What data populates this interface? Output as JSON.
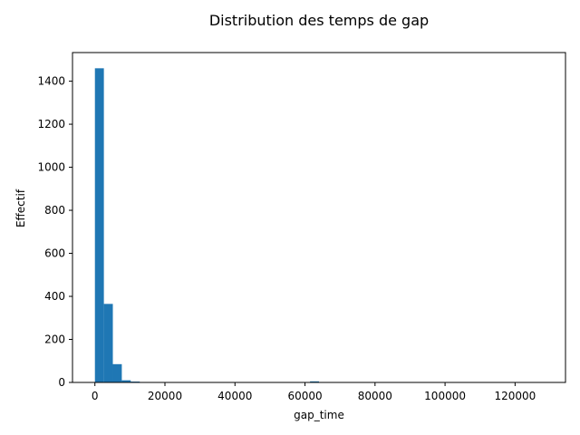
{
  "chart_data": {
    "type": "bar",
    "title": "Distribution des temps de gap",
    "xlabel": "gap_time",
    "ylabel": "Effectif",
    "bins": [
      {
        "x0": 0,
        "x1": 2560,
        "count": 1460
      },
      {
        "x0": 2560,
        "x1": 5120,
        "count": 365
      },
      {
        "x0": 5120,
        "x1": 7680,
        "count": 85
      },
      {
        "x0": 7680,
        "x1": 10240,
        "count": 10
      },
      {
        "x0": 10240,
        "x1": 12800,
        "count": 4
      },
      {
        "x0": 12800,
        "x1": 15360,
        "count": 1
      },
      {
        "x0": 15360,
        "x1": 17920,
        "count": 1
      },
      {
        "x0": 61440,
        "x1": 64000,
        "count": 5
      }
    ],
    "xlim": [
      -6400,
      134400
    ],
    "ylim": [
      0,
      1533
    ],
    "xticks": [
      0,
      20000,
      40000,
      60000,
      80000,
      100000,
      120000
    ],
    "yticks": [
      0,
      200,
      400,
      600,
      800,
      1000,
      1200,
      1400
    ],
    "grid": false,
    "color": "#1f77b4"
  }
}
